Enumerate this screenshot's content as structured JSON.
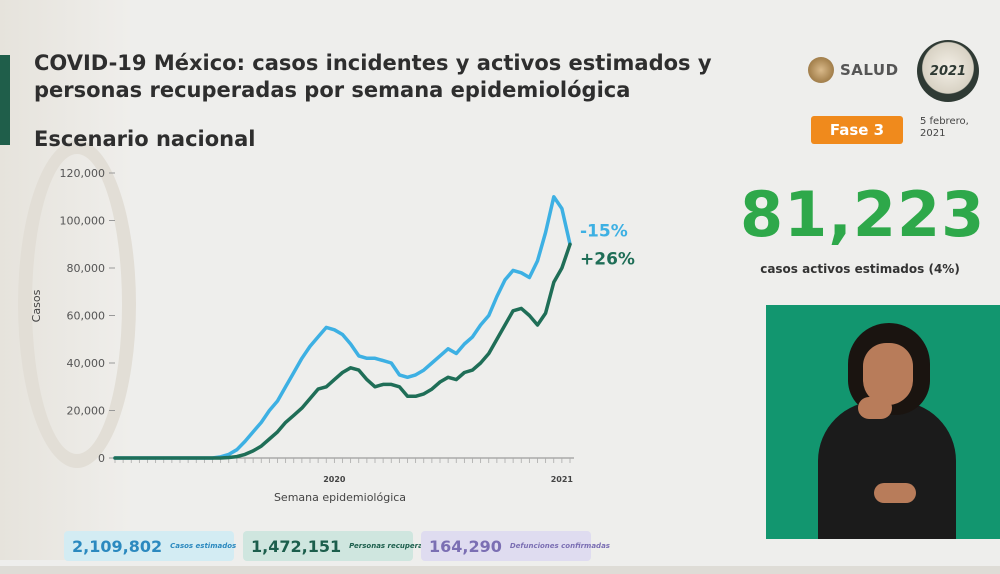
{
  "header": {
    "title": "COVID-19 México: casos incidentes y activos estimados y personas recuperadas por semana epidemiológica",
    "subtitle": "Escenario nacional",
    "logo_text": "SALUD",
    "badge_text": "2021",
    "phase": "Fase 3",
    "date": "5 febrero, 2021"
  },
  "kpi": {
    "value": "81,223",
    "label": "casos activos estimados (4%)"
  },
  "stats": {
    "cases_value": "2,109,802",
    "cases_label": "Casos estimados",
    "recovered_value": "1,472,151",
    "recovered_label": "Personas recuperadas",
    "deaths_value": "164,290",
    "deaths_label": "Defunciones confirmadas"
  },
  "colors": {
    "estimated": "#3db0e3",
    "active": "#1f6e57",
    "axis": "#555555",
    "kpi": "#2ea84a"
  },
  "chart_data": {
    "type": "line",
    "ylabel": "Casos",
    "xlabel": "Semana epidemiológica",
    "ylim": [
      0,
      120000
    ],
    "yticks": [
      0,
      20000,
      40000,
      60000,
      80000,
      100000,
      120000
    ],
    "ytick_labels": [
      "0",
      "20,000",
      "40,000",
      "60,000",
      "80,000",
      "100,000",
      "120,000"
    ],
    "year_labels": [
      {
        "label": "2020",
        "week_index": 27
      },
      {
        "label": "2021",
        "week_index": 55
      }
    ],
    "x": [
      1,
      2,
      3,
      4,
      5,
      6,
      7,
      8,
      9,
      10,
      11,
      12,
      13,
      14,
      15,
      16,
      17,
      18,
      19,
      20,
      21,
      22,
      23,
      24,
      25,
      26,
      27,
      28,
      29,
      30,
      31,
      32,
      33,
      34,
      35,
      36,
      37,
      38,
      39,
      40,
      41,
      42,
      43,
      44,
      45,
      46,
      47,
      48,
      49,
      50,
      51,
      52,
      53,
      54,
      55,
      56,
      57
    ],
    "series": [
      {
        "values": [
          0,
          0,
          0,
          0,
          0,
          0,
          0,
          0,
          0,
          0,
          0,
          0,
          0,
          500,
          1500,
          3500,
          7000,
          11000,
          15000,
          20000,
          24000,
          30000,
          36000,
          42000,
          47000,
          51000,
          55000,
          54000,
          52000,
          48000,
          43000,
          42000,
          42000,
          41000,
          40000,
          35000,
          34000,
          35000,
          37000,
          40000,
          43000,
          46000,
          44000,
          48000,
          51000,
          56000,
          60000,
          68000,
          75000,
          79000,
          78000,
          76000,
          83000,
          95000,
          110000,
          105000,
          90000
        ],
        "end_label": "-15%"
      },
      {
        "values": [
          0,
          0,
          0,
          0,
          0,
          0,
          0,
          0,
          0,
          0,
          0,
          0,
          0,
          0,
          200,
          600,
          1500,
          3000,
          5000,
          8000,
          11000,
          15000,
          18000,
          21000,
          25000,
          29000,
          30000,
          33000,
          36000,
          38000,
          37000,
          33000,
          30000,
          31000,
          31000,
          30000,
          26000,
          26000,
          27000,
          29000,
          32000,
          34000,
          33000,
          36000,
          37000,
          40000,
          44000,
          50000,
          56000,
          62000,
          63000,
          60000,
          56000,
          61000,
          74000,
          80000,
          90000
        ],
        "end_label": "+26%"
      }
    ]
  }
}
